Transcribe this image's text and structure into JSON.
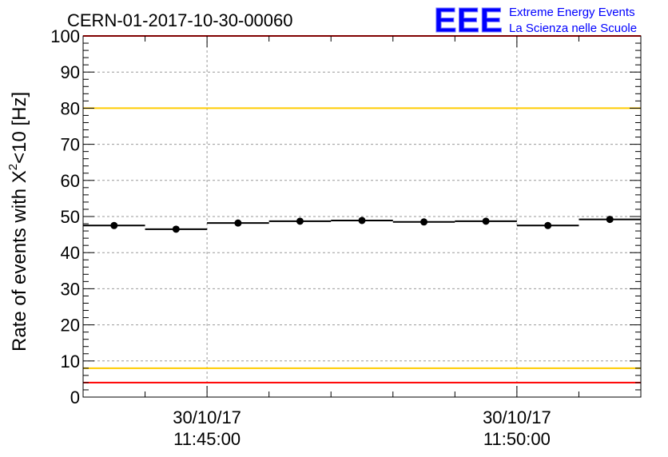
{
  "chart_data": {
    "type": "scatter",
    "title": "CERN-01-2017-10-30-00060",
    "ylabel_main": "Rate of events with X",
    "ylabel_sup": "2",
    "ylabel_tail": "<10 [Hz]",
    "xlabel": "",
    "ylim": [
      0,
      100
    ],
    "y_ticks": [
      "0",
      "10",
      "20",
      "30",
      "40",
      "50",
      "60",
      "70",
      "80",
      "90",
      "100"
    ],
    "x_ticks": [
      {
        "date": "30/10/17",
        "time": "11:45:00"
      },
      {
        "date": "30/10/17",
        "time": "11:50:00"
      }
    ],
    "grid": true,
    "x_time_range": [
      "11:43:00",
      "11:52:00"
    ],
    "series": [
      {
        "values": [
          {
            "t_start": "11:43:00",
            "t_end": "11:44:00",
            "y": 47.5
          },
          {
            "t_start": "11:44:00",
            "t_end": "11:45:00",
            "y": 46.5
          },
          {
            "t_start": "11:45:00",
            "t_end": "11:46:00",
            "y": 48.2
          },
          {
            "t_start": "11:46:00",
            "t_end": "11:47:00",
            "y": 48.7
          },
          {
            "t_start": "11:47:00",
            "t_end": "11:48:00",
            "y": 48.9
          },
          {
            "t_start": "11:48:00",
            "t_end": "11:49:00",
            "y": 48.5
          },
          {
            "t_start": "11:49:00",
            "t_end": "11:50:00",
            "y": 48.7
          },
          {
            "t_start": "11:50:00",
            "t_end": "11:51:00",
            "y": 47.5
          },
          {
            "t_start": "11:51:00",
            "t_end": "11:52:00",
            "y": 49.2
          }
        ]
      }
    ],
    "reference_lines": [
      {
        "y": 100,
        "color": "#ff0000"
      },
      {
        "y": 80,
        "color": "#ffcc00"
      },
      {
        "y": 8,
        "color": "#ffcc00"
      },
      {
        "y": 4,
        "color": "#ff0000"
      }
    ]
  },
  "logo": {
    "mark": "EEE",
    "line1": "Extreme Energy Events",
    "line2": "La Scienza nelle Scuole",
    "color": "#0000ff"
  }
}
